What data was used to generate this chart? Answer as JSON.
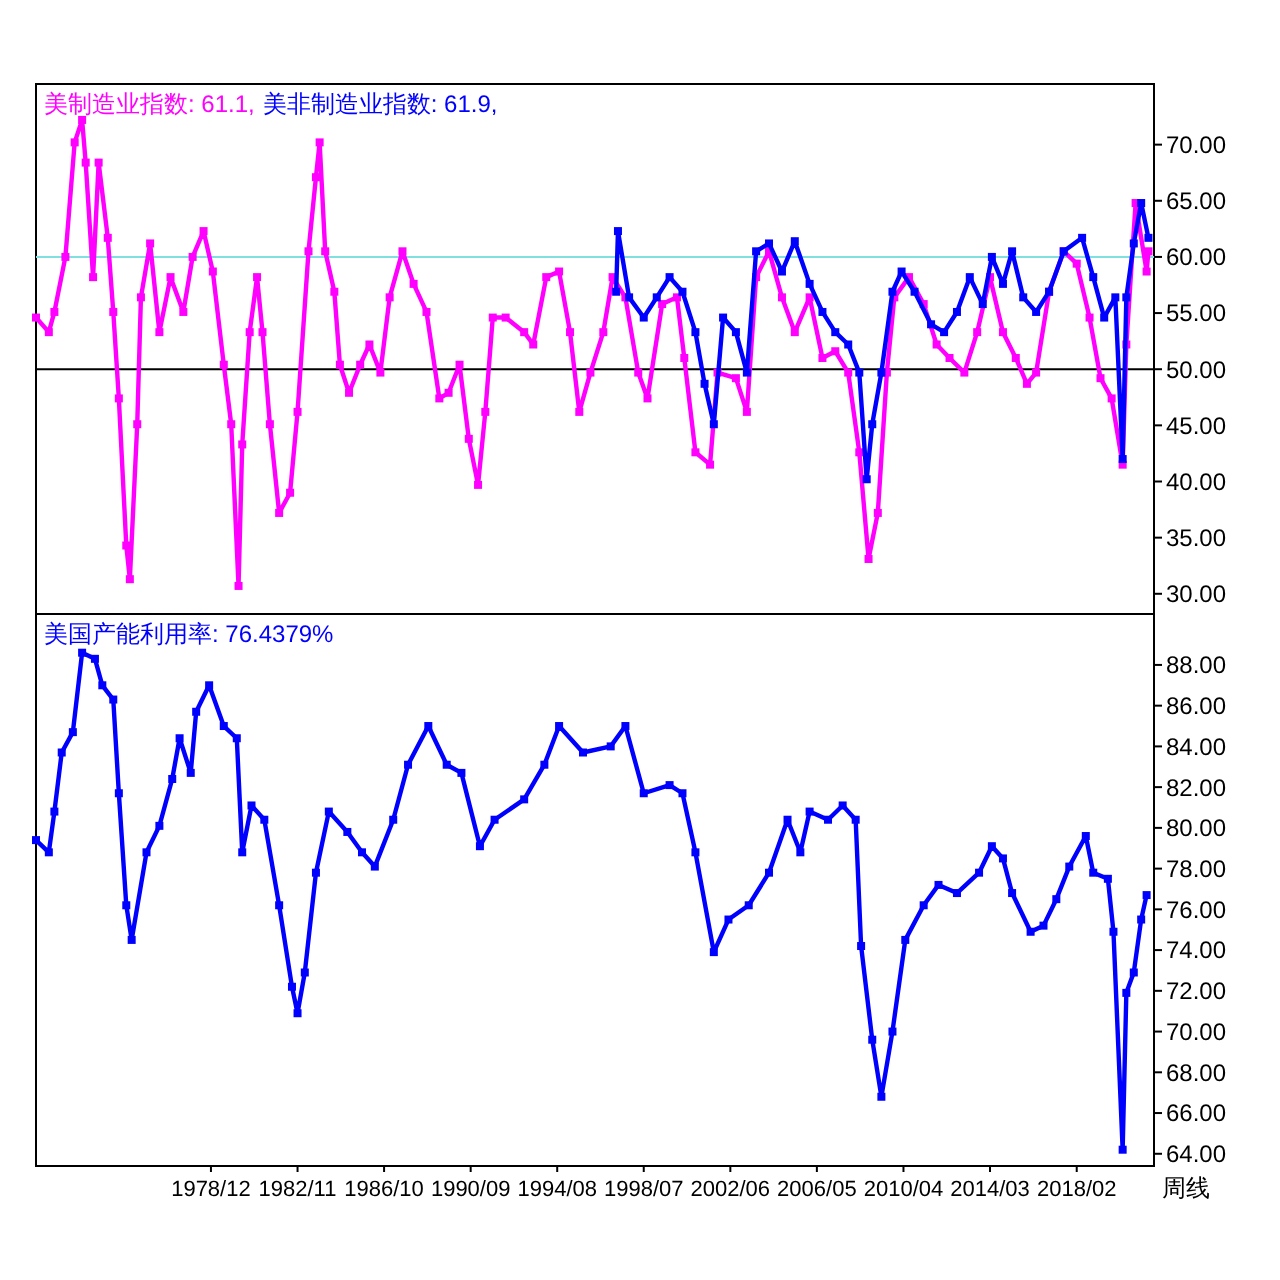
{
  "chart_data": [
    {
      "type": "line",
      "legend": "top left",
      "marker": "square",
      "tick_labels": "y",
      "xlim": [
        "1971-01",
        "2021-08"
      ],
      "ylim": [
        28.2,
        75.4
      ],
      "yticks": [
        {
          "value": 30,
          "label": "30.00"
        },
        {
          "value": 35,
          "label": "35.00"
        },
        {
          "value": 40,
          "label": "40.00"
        },
        {
          "value": 45,
          "label": "45.00"
        },
        {
          "value": 50,
          "label": "50.00"
        },
        {
          "value": 55,
          "label": "55.00"
        },
        {
          "value": 60,
          "label": "60.00"
        },
        {
          "value": 65,
          "label": "65.00"
        },
        {
          "value": 70,
          "label": "70.00"
        }
      ],
      "ref_lines": [
        {
          "axis": "y",
          "value": 50,
          "color": "#000000"
        },
        {
          "axis": "y",
          "value": 60,
          "color": "#80e0e0"
        }
      ],
      "series": [
        {
          "name": "美制造业指数: 61.1,",
          "color": "#ff00ff",
          "x": [
            "1971-01",
            "1971-08",
            "1971-11",
            "1972-05",
            "1972-10",
            "1973-02",
            "1973-04",
            "1973-08",
            "1973-11",
            "1974-04",
            "1974-07",
            "1974-10",
            "1975-02",
            "1975-04",
            "1975-08",
            "1975-10",
            "1976-03",
            "1976-08",
            "1977-02",
            "1977-09",
            "1978-02",
            "1978-08",
            "1979-01",
            "1979-07",
            "1979-11",
            "1980-03",
            "1980-05",
            "1980-09",
            "1981-01",
            "1981-04",
            "1981-08",
            "1982-01",
            "1982-07",
            "1982-11",
            "1983-05",
            "1983-09",
            "1983-11",
            "1984-02",
            "1984-07",
            "1984-10",
            "1985-03",
            "1985-09",
            "1986-02",
            "1986-08",
            "1987-01",
            "1987-08",
            "1988-02",
            "1988-09",
            "1989-04",
            "1989-09",
            "1990-03",
            "1990-08",
            "1991-01",
            "1991-05",
            "1991-09",
            "1992-04",
            "1993-02",
            "1993-07",
            "1994-02",
            "1994-09",
            "1995-03",
            "1995-08",
            "1996-02",
            "1996-09",
            "1997-02",
            "1997-09",
            "1998-04",
            "1998-09",
            "1999-05",
            "2000-01",
            "2000-05",
            "2000-11",
            "2001-07",
            "2001-11",
            "2002-09",
            "2003-03",
            "2003-08",
            "2004-03",
            "2004-10",
            "2005-05",
            "2006-01",
            "2006-08",
            "2007-03",
            "2007-10",
            "2008-04",
            "2008-09",
            "2009-02",
            "2009-07",
            "2009-11",
            "2010-07",
            "2011-03",
            "2011-10",
            "2012-05",
            "2013-01",
            "2013-08",
            "2014-03",
            "2014-10",
            "2015-05",
            "2015-11",
            "2016-04",
            "2016-11",
            "2017-07",
            "2018-02",
            "2018-09",
            "2019-03",
            "2019-09",
            "2020-03",
            "2020-05",
            "2020-10",
            "2021-04",
            "2021-05"
          ],
          "values": [
            54.6,
            53.3,
            55.1,
            60,
            70.2,
            72.2,
            68.4,
            58.2,
            68.4,
            61.7,
            55.1,
            47.4,
            34.3,
            31.3,
            45.1,
            56.4,
            61.2,
            53.3,
            58.2,
            55.1,
            60,
            62.3,
            58.7,
            50.4,
            45.1,
            30.7,
            43.3,
            53.3,
            58.2,
            53.3,
            45.1,
            37.2,
            39.0,
            46.2,
            60.5,
            67.1,
            70.2,
            60.5,
            56.9,
            50.4,
            47.9,
            50.4,
            52.2,
            49.7,
            56.4,
            60.5,
            57.6,
            55.1,
            47.4,
            47.9,
            50.4,
            43.8,
            39.7,
            46.2,
            54.6,
            54.6,
            53.3,
            52.2,
            58.2,
            58.7,
            53.3,
            46.2,
            49.7,
            53.3,
            58.2,
            56.4,
            49.7,
            47.4,
            55.8,
            56.4,
            51.0,
            42.6,
            41.5,
            49.7,
            49.2,
            46.2,
            58.2,
            60.5,
            56.4,
            53.3,
            56.4,
            51.0,
            51.6,
            49.7,
            42.6,
            33.1,
            37.2,
            49.7,
            56.4,
            58.2,
            55.8,
            52.2,
            51.0,
            49.7,
            53.3,
            58.2,
            53.3,
            51.0,
            48.7,
            49.7,
            56.9,
            60.5,
            59.4,
            54.6,
            49.2,
            47.4,
            41.5,
            52.2,
            64.8,
            58.7,
            60.5
          ]
        },
        {
          "name": "美非制造业指数: 61.9,",
          "color": "#0000ff",
          "x": [
            "1997-04",
            "1997-05",
            "1997-11",
            "1998-07",
            "1999-02",
            "1999-09",
            "2000-04",
            "2000-11",
            "2001-04",
            "2001-09",
            "2002-02",
            "2002-09",
            "2003-03",
            "2003-08",
            "2004-03",
            "2004-10",
            "2005-05",
            "2006-01",
            "2006-08",
            "2007-03",
            "2007-10",
            "2008-04",
            "2008-08",
            "2008-11",
            "2009-04",
            "2009-10",
            "2010-03",
            "2010-10",
            "2011-07",
            "2012-02",
            "2012-09",
            "2013-04",
            "2013-11",
            "2014-04",
            "2014-10",
            "2015-03",
            "2015-09",
            "2016-04",
            "2016-11",
            "2017-07",
            "2018-05",
            "2018-11",
            "2019-05",
            "2019-11",
            "2020-03",
            "2020-05",
            "2020-09",
            "2021-01",
            "2021-05"
          ],
          "values": [
            56.9,
            62.3,
            56.4,
            54.6,
            56.4,
            58.2,
            56.9,
            53.3,
            48.7,
            45.1,
            54.6,
            53.3,
            49.7,
            60.5,
            61.2,
            58.7,
            61.4,
            57.6,
            55.1,
            53.3,
            52.2,
            49.7,
            40.2,
            45.1,
            49.7,
            56.9,
            58.7,
            56.9,
            54.0,
            53.3,
            55.1,
            58.2,
            55.8,
            60.0,
            57.6,
            60.5,
            56.4,
            55.1,
            56.9,
            60.5,
            61.7,
            58.2,
            54.6,
            56.4,
            42.0,
            56.4,
            61.2,
            64.8,
            61.7
          ]
        }
      ]
    },
    {
      "type": "line",
      "legend": "top left",
      "marker": "square",
      "xlim": [
        "1971-01",
        "2021-08"
      ],
      "ylim": [
        63.4,
        90.5
      ],
      "xticks": [
        {
          "value": "1978-12",
          "label": "1978/12"
        },
        {
          "value": "1982-11",
          "label": "1982/11"
        },
        {
          "value": "1986-10",
          "label": "1986/10"
        },
        {
          "value": "1990-09",
          "label": "1990/09"
        },
        {
          "value": "1994-08",
          "label": "1994/08"
        },
        {
          "value": "1998-07",
          "label": "1998/07"
        },
        {
          "value": "2002-06",
          "label": "2002/06"
        },
        {
          "value": "2006-05",
          "label": "2006/05"
        },
        {
          "value": "2010-04",
          "label": "2010/04"
        },
        {
          "value": "2014-03",
          "label": "2014/03"
        },
        {
          "value": "2018-02",
          "label": "2018/02"
        }
      ],
      "yticks": [
        {
          "value": 64,
          "label": "64.00"
        },
        {
          "value": 66,
          "label": "66.00"
        },
        {
          "value": 68,
          "label": "68.00"
        },
        {
          "value": 70,
          "label": "70.00"
        },
        {
          "value": 72,
          "label": "72.00"
        },
        {
          "value": 74,
          "label": "74.00"
        },
        {
          "value": 76,
          "label": "76.00"
        },
        {
          "value": 78,
          "label": "78.00"
        },
        {
          "value": 80,
          "label": "80.00"
        },
        {
          "value": 82,
          "label": "82.00"
        },
        {
          "value": 84,
          "label": "84.00"
        },
        {
          "value": 86,
          "label": "86.00"
        },
        {
          "value": 88,
          "label": "88.00"
        }
      ],
      "annotations": [
        "周线"
      ],
      "series": [
        {
          "name": "美国产能利用率: 76.4379%",
          "color": "#0000ff",
          "x": [
            "1971-01",
            "1971-08",
            "1971-11",
            "1972-03",
            "1972-09",
            "1973-02",
            "1973-09",
            "1974-01",
            "1974-07",
            "1974-10",
            "1975-02",
            "1975-05",
            "1976-01",
            "1976-08",
            "1977-03",
            "1977-07",
            "1978-01",
            "1978-04",
            "1978-11",
            "1979-07",
            "1980-02",
            "1980-05",
            "1980-10",
            "1981-05",
            "1982-01",
            "1982-08",
            "1982-11",
            "1983-03",
            "1983-09",
            "1984-04",
            "1985-02",
            "1985-10",
            "1986-05",
            "1987-03",
            "1987-11",
            "1988-10",
            "1989-08",
            "1990-04",
            "1991-02",
            "1991-10",
            "1993-02",
            "1994-01",
            "1994-09",
            "1995-10",
            "1997-01",
            "1997-09",
            "1998-07",
            "1999-09",
            "2000-04",
            "2000-11",
            "2001-09",
            "2002-05",
            "2003-04",
            "2004-03",
            "2005-01",
            "2005-08",
            "2006-01",
            "2006-11",
            "2007-07",
            "2008-02",
            "2008-05",
            "2008-11",
            "2009-04",
            "2009-10",
            "2010-05",
            "2011-03",
            "2011-11",
            "2012-09",
            "2013-09",
            "2014-04",
            "2014-10",
            "2015-03",
            "2016-01",
            "2016-08",
            "2017-03",
            "2017-10",
            "2018-07",
            "2018-11",
            "2019-07",
            "2019-10",
            "2020-03",
            "2020-05",
            "2020-09",
            "2021-01",
            "2021-04"
          ],
          "values": [
            79.4,
            78.8,
            80.8,
            83.7,
            84.7,
            88.6,
            88.3,
            87.0,
            86.3,
            81.7,
            76.2,
            74.5,
            78.8,
            80.1,
            82.4,
            84.4,
            82.7,
            85.7,
            87.0,
            85.0,
            84.4,
            78.8,
            81.1,
            80.4,
            76.2,
            72.2,
            70.9,
            72.9,
            77.8,
            80.8,
            79.8,
            78.8,
            78.1,
            80.4,
            83.1,
            85.0,
            83.1,
            82.7,
            79.1,
            80.4,
            81.4,
            83.1,
            85.0,
            83.7,
            84.0,
            85.0,
            81.7,
            82.1,
            81.7,
            78.8,
            73.9,
            75.5,
            76.2,
            77.8,
            80.4,
            78.8,
            80.8,
            80.4,
            81.1,
            80.4,
            74.2,
            69.6,
            66.8,
            70.0,
            74.5,
            76.2,
            77.2,
            76.8,
            77.8,
            79.1,
            78.5,
            76.8,
            74.9,
            75.2,
            76.5,
            78.1,
            79.6,
            77.8,
            77.5,
            74.9,
            64.2,
            71.9,
            72.9,
            75.5,
            76.7
          ]
        }
      ]
    }
  ]
}
